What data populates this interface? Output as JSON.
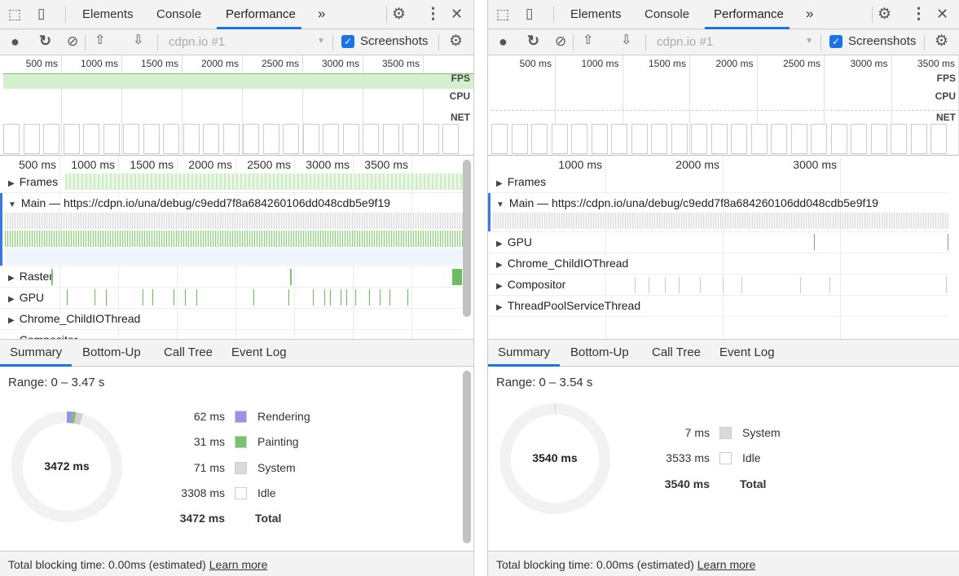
{
  "panels": [
    {
      "tabs": [
        "Elements",
        "Console",
        "Performance"
      ],
      "active_tab": 2,
      "more_label": "»",
      "recording_select": "cdpn.io #1",
      "screenshots_label": "Screenshots",
      "screenshots_checked": true,
      "overview_ticks": [
        "500 ms",
        "1000 ms",
        "1500 ms",
        "2000 ms",
        "2500 ms",
        "3000 ms",
        "3500 ms"
      ],
      "overview_labels": {
        "fps": "FPS",
        "cpu": "CPU",
        "net": "NET"
      },
      "timeline_ticks": [
        "500 ms",
        "1000 ms",
        "1500 ms",
        "2000 ms",
        "2500 ms",
        "3000 ms",
        "3500 ms"
      ],
      "tracks": [
        {
          "label": "Frames",
          "expanded": false
        },
        {
          "label": "Main — https://cdpn.io/una/debug/c9edd7f8a684260106dd048cdb5e9f19",
          "expanded": true
        },
        {
          "label": "Raster",
          "expanded": false
        },
        {
          "label": "GPU",
          "expanded": false
        },
        {
          "label": "Chrome_ChildIOThread",
          "expanded": false
        },
        {
          "label": "Compositor",
          "expanded": false
        }
      ],
      "bottom_tabs": [
        "Summary",
        "Bottom-Up",
        "Call Tree",
        "Event Log"
      ],
      "summary": {
        "range": "Range: 0 – 3.47 s",
        "total_center": "3472 ms",
        "rows": [
          {
            "value": "62 ms",
            "label": "Rendering",
            "color": "#9a91e8"
          },
          {
            "value": "31 ms",
            "label": "Painting",
            "color": "#79c36f"
          },
          {
            "value": "71 ms",
            "label": "System",
            "color": "#dadada"
          },
          {
            "value": "3308 ms",
            "label": "Idle",
            "color": "#ffffff"
          }
        ],
        "total_value": "3472 ms",
        "total_label": "Total"
      },
      "footer": {
        "text": "Total blocking time: 0.00ms (estimated)",
        "link": "Learn more"
      }
    },
    {
      "tabs": [
        "Elements",
        "Console",
        "Performance"
      ],
      "active_tab": 2,
      "more_label": "»",
      "recording_select": "cdpn.io #1",
      "screenshots_label": "Screenshots",
      "screenshots_checked": true,
      "overview_ticks": [
        "500 ms",
        "1000 ms",
        "1500 ms",
        "2000 ms",
        "2500 ms",
        "3000 ms",
        "3500 ms"
      ],
      "overview_labels": {
        "fps": "FPS",
        "cpu": "CPU",
        "net": "NET"
      },
      "timeline_ticks": [
        "1000 ms",
        "2000 ms",
        "3000 ms"
      ],
      "tracks": [
        {
          "label": "Frames",
          "expanded": false
        },
        {
          "label": "Main — https://cdpn.io/una/debug/c9edd7f8a684260106dd048cdb5e9f19",
          "expanded": true
        },
        {
          "label": "GPU",
          "expanded": false
        },
        {
          "label": "Chrome_ChildIOThread",
          "expanded": false
        },
        {
          "label": "Compositor",
          "expanded": false
        },
        {
          "label": "ThreadPoolServiceThread",
          "expanded": false
        }
      ],
      "bottom_tabs": [
        "Summary",
        "Bottom-Up",
        "Call Tree",
        "Event Log"
      ],
      "summary": {
        "range": "Range: 0 – 3.54 s",
        "total_center": "3540 ms",
        "rows": [
          {
            "value": "7 ms",
            "label": "System",
            "color": "#dadada"
          },
          {
            "value": "3533 ms",
            "label": "Idle",
            "color": "#ffffff"
          }
        ],
        "total_value": "3540 ms",
        "total_label": "Total"
      },
      "footer": {
        "text": "Total blocking time: 0.00ms (estimated)",
        "link": "Learn more"
      }
    }
  ]
}
